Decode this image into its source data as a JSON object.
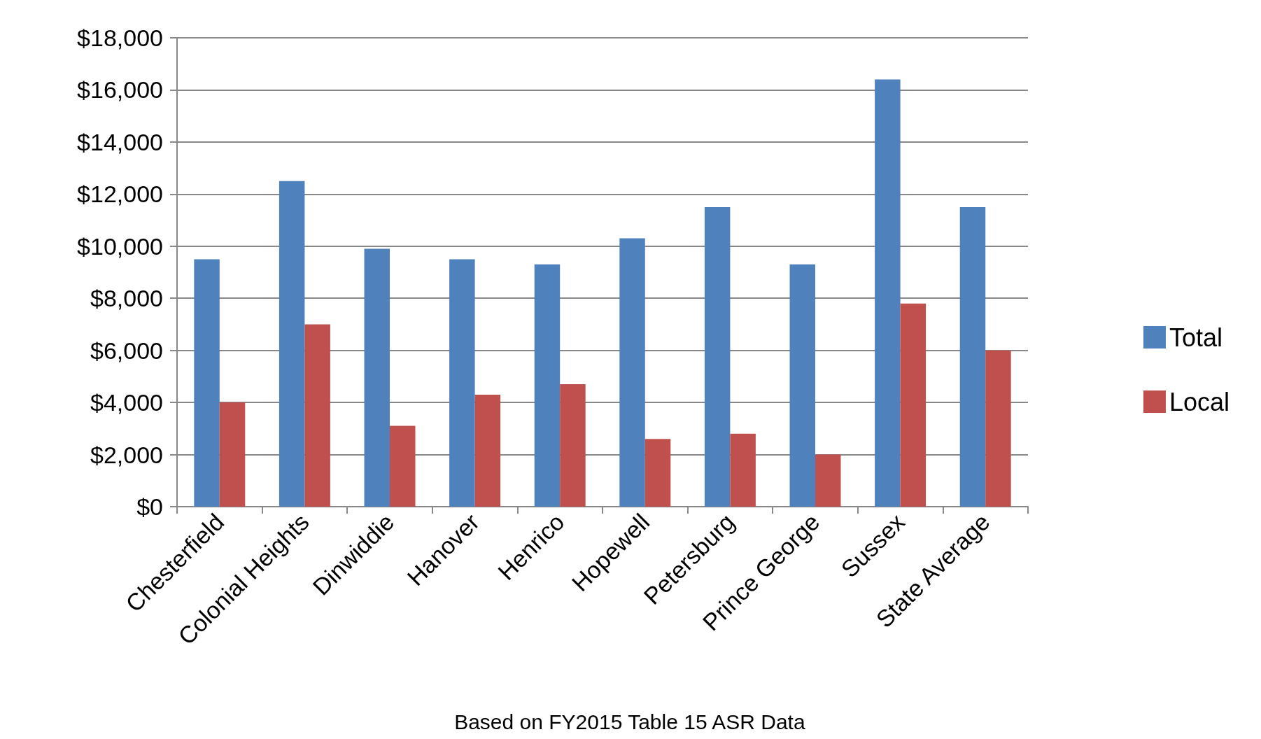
{
  "chart_data": {
    "type": "bar",
    "categories": [
      "Chesterfield",
      "Colonial Heights",
      "Dinwiddie",
      "Hanover",
      "Henrico",
      "Hopewell",
      "Petersburg",
      "Prince George",
      "Sussex",
      "State Average"
    ],
    "series": [
      {
        "name": "Total",
        "color": "#4f81bd",
        "values": [
          9500,
          12500,
          9900,
          9500,
          9300,
          10300,
          11500,
          9300,
          16400,
          11500
        ]
      },
      {
        "name": "Local",
        "color": "#c0504d",
        "values": [
          4000,
          7000,
          3100,
          4300,
          4700,
          2600,
          2800,
          2000,
          7800,
          6000
        ]
      }
    ],
    "ylim": [
      0,
      18000
    ],
    "yticks": [
      {
        "value": 0,
        "label": "$0"
      },
      {
        "value": 2000,
        "label": "$2,000"
      },
      {
        "value": 4000,
        "label": "$4,000"
      },
      {
        "value": 6000,
        "label": "$6,000"
      },
      {
        "value": 8000,
        "label": "$8,000"
      },
      {
        "value": 10000,
        "label": "$10,000"
      },
      {
        "value": 12000,
        "label": "$12,000"
      },
      {
        "value": 14000,
        "label": "$14,000"
      },
      {
        "value": 16000,
        "label": "$16,000"
      },
      {
        "value": 18000,
        "label": "$18,000"
      }
    ],
    "grid": "y",
    "legend": "right",
    "annotations": [
      "Based on FY2015 Table 15 ASR Data"
    ]
  }
}
